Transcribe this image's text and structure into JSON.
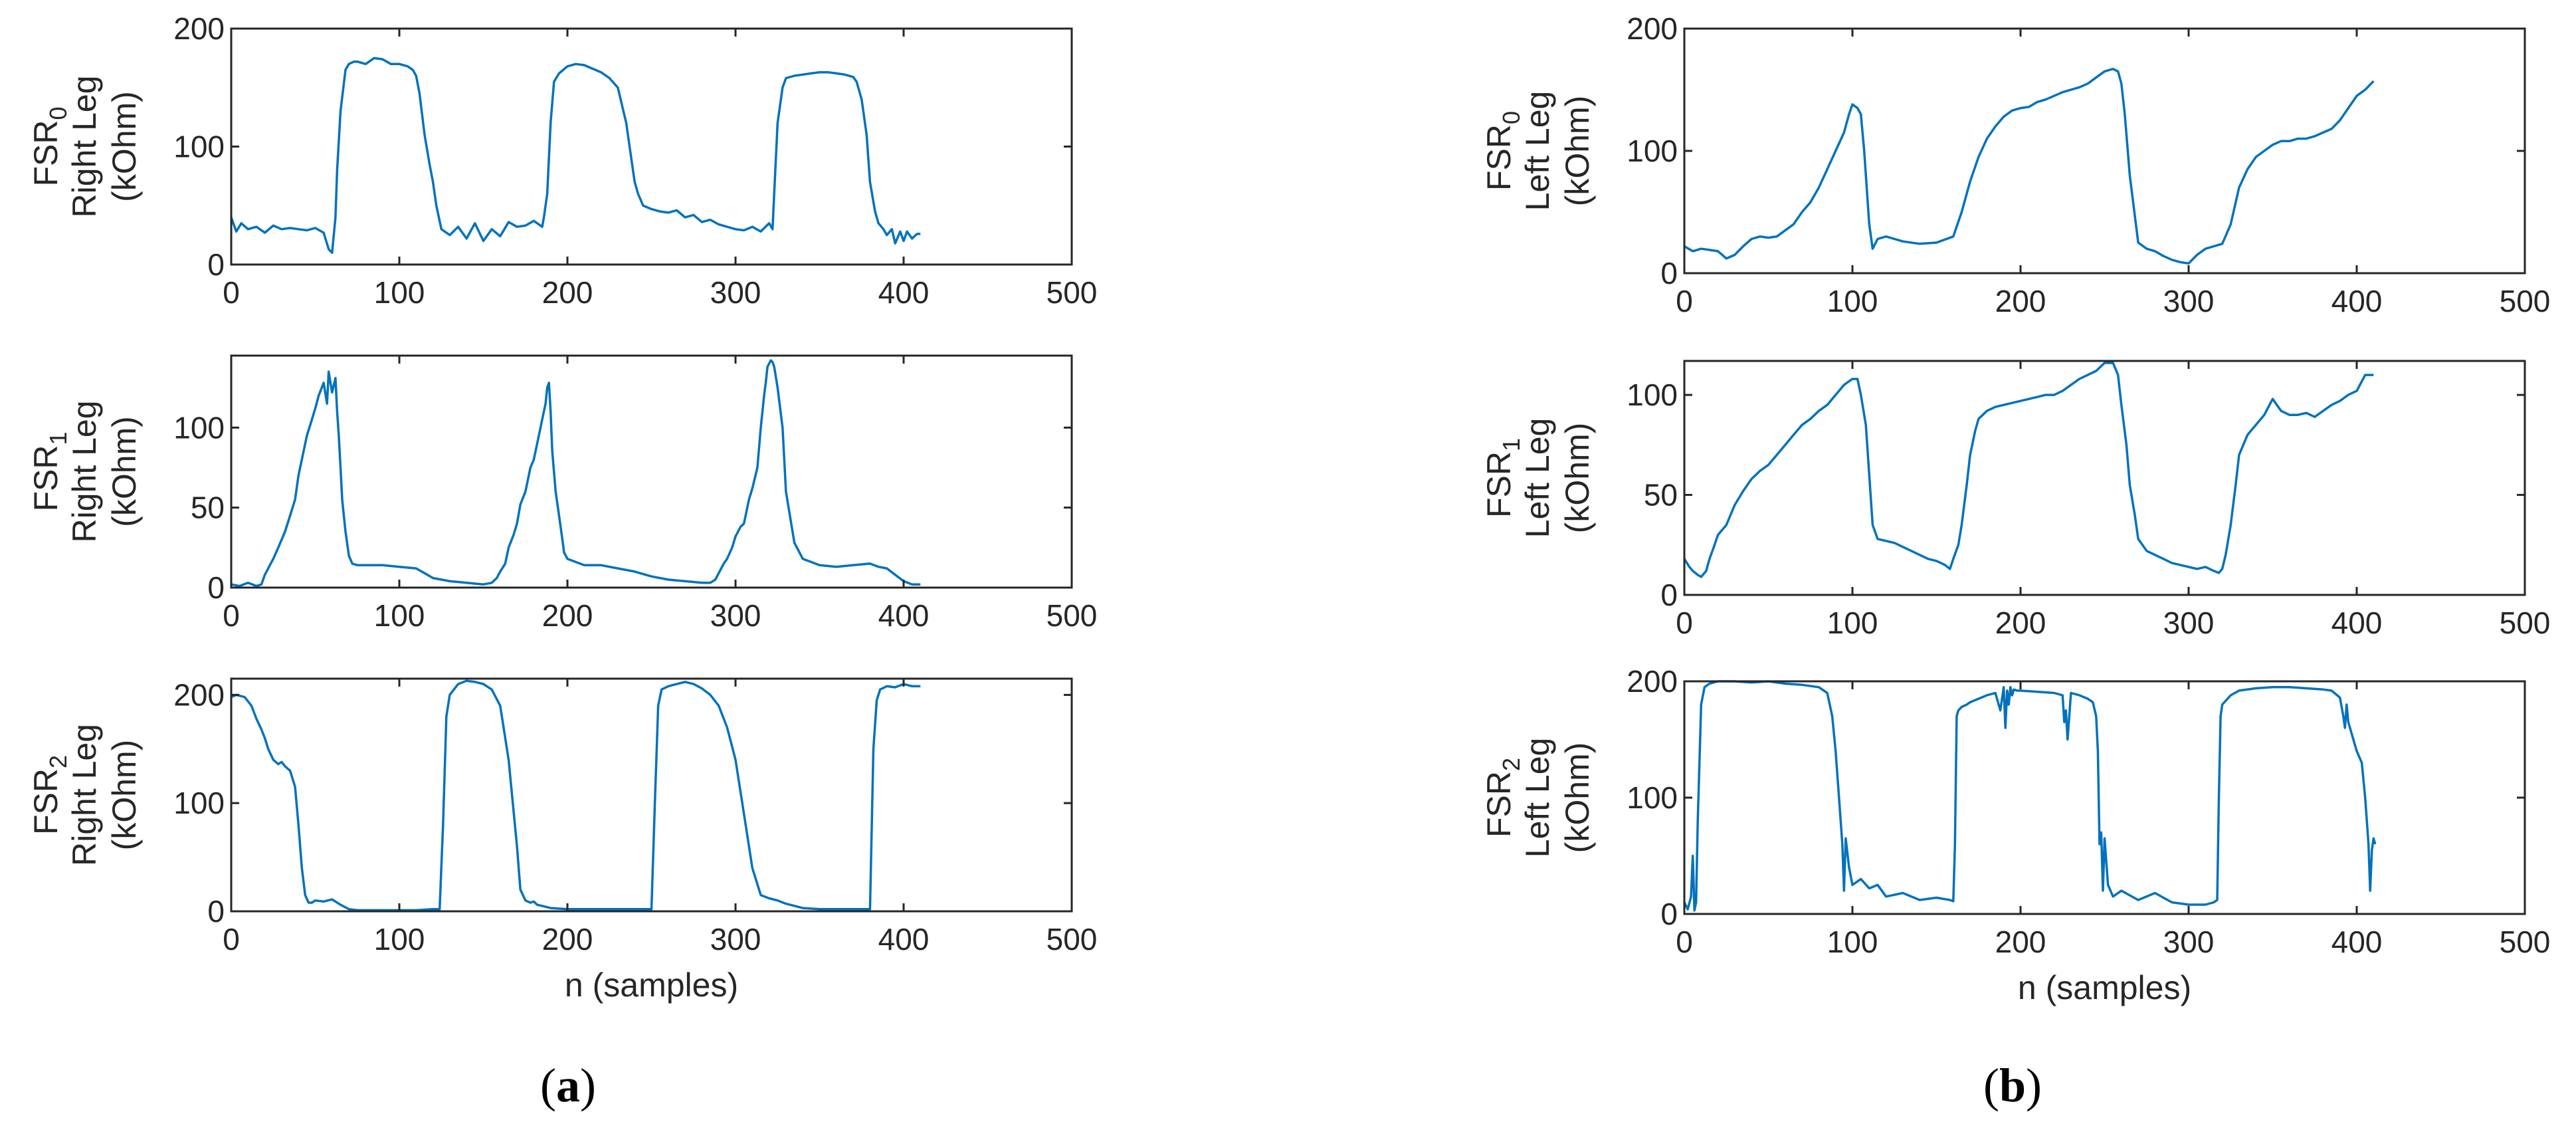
{
  "colors": {
    "line": "#0072BD",
    "axis": "#262626"
  },
  "panel_labels": [
    {
      "open": "(",
      "letter": "a",
      "close": ")"
    },
    {
      "open": "(",
      "letter": "b",
      "close": ")"
    }
  ],
  "chart_data": [
    {
      "type": "line",
      "panel": "a",
      "sensor": "FSR",
      "index": "0",
      "ylabel_line1": "Right Leg",
      "ylabel_line2": "(kOhm)",
      "xlabel": "",
      "xlim": [
        0,
        500
      ],
      "ylim": [
        0,
        200
      ],
      "xticks": [
        "0",
        "100",
        "200",
        "300",
        "400",
        "500"
      ],
      "yticks": [
        "0",
        "100",
        "200"
      ],
      "x": [
        0,
        3,
        6,
        10,
        15,
        20,
        25,
        30,
        35,
        40,
        45,
        50,
        55,
        58,
        60,
        62,
        63,
        65,
        68,
        70,
        73,
        75,
        80,
        85,
        90,
        95,
        100,
        105,
        108,
        110,
        112,
        115,
        118,
        120,
        122,
        125,
        130,
        135,
        140,
        145,
        150,
        155,
        160,
        165,
        170,
        175,
        180,
        185,
        186,
        188,
        190,
        192,
        195,
        200,
        205,
        210,
        215,
        220,
        225,
        230,
        235,
        238,
        240,
        242,
        245,
        250,
        255,
        260,
        265,
        270,
        275,
        280,
        285,
        290,
        295,
        300,
        305,
        310,
        315,
        320,
        322,
        323,
        325,
        328,
        330,
        335,
        340,
        345,
        350,
        355,
        360,
        365,
        370,
        372,
        375,
        378,
        380,
        383,
        385,
        388,
        390,
        393,
        395,
        398,
        400,
        402,
        405,
        408,
        410
      ],
      "y": [
        40,
        28,
        35,
        30,
        32,
        27,
        33,
        30,
        31,
        30,
        29,
        31,
        27,
        13,
        10,
        40,
        80,
        130,
        165,
        170,
        172,
        172,
        170,
        175,
        174,
        170,
        170,
        168,
        165,
        160,
        145,
        110,
        85,
        70,
        50,
        30,
        25,
        32,
        22,
        35,
        20,
        30,
        24,
        36,
        32,
        33,
        37,
        32,
        40,
        60,
        120,
        155,
        162,
        168,
        170,
        169,
        166,
        163,
        158,
        150,
        120,
        90,
        70,
        60,
        50,
        47,
        45,
        44,
        46,
        40,
        42,
        36,
        38,
        34,
        32,
        30,
        29,
        32,
        28,
        35,
        30,
        60,
        120,
        150,
        158,
        160,
        161,
        162,
        163,
        163,
        162,
        161,
        159,
        155,
        140,
        110,
        70,
        45,
        35,
        30,
        25,
        30,
        18,
        28,
        20,
        28,
        22,
        26,
        26
      ]
    },
    {
      "type": "line",
      "panel": "a",
      "sensor": "FSR",
      "index": "1",
      "ylabel_line1": "Right Leg",
      "ylabel_line2": "(kOhm)",
      "xlabel": "",
      "xlim": [
        0,
        500
      ],
      "ylim": [
        0,
        145
      ],
      "xticks": [
        "0",
        "100",
        "200",
        "300",
        "400",
        "500"
      ],
      "yticks": [
        "0",
        "50",
        "100"
      ],
      "x": [
        0,
        5,
        10,
        15,
        18,
        20,
        22,
        25,
        28,
        30,
        32,
        35,
        38,
        40,
        42,
        45,
        48,
        50,
        52,
        55,
        57,
        58,
        60,
        62,
        63,
        64,
        65,
        66,
        68,
        70,
        72,
        75,
        80,
        90,
        100,
        110,
        115,
        120,
        130,
        140,
        150,
        155,
        158,
        160,
        163,
        165,
        168,
        170,
        172,
        175,
        178,
        180,
        183,
        185,
        187,
        188,
        189,
        190,
        191,
        193,
        195,
        197,
        198,
        200,
        205,
        210,
        220,
        230,
        240,
        250,
        260,
        270,
        280,
        285,
        288,
        290,
        293,
        295,
        298,
        300,
        303,
        305,
        308,
        310,
        313,
        315,
        317,
        318,
        319,
        320,
        321,
        322,
        323,
        325,
        328,
        330,
        335,
        340,
        350,
        360,
        370,
        380,
        385,
        390,
        395,
        400,
        405,
        410
      ],
      "y": [
        2,
        1,
        3,
        1,
        2,
        8,
        12,
        18,
        25,
        30,
        35,
        45,
        55,
        70,
        80,
        95,
        105,
        112,
        120,
        128,
        115,
        135,
        122,
        131,
        110,
        95,
        75,
        55,
        35,
        20,
        15,
        14,
        14,
        14,
        13,
        12,
        9,
        6,
        4,
        3,
        2,
        3,
        6,
        10,
        15,
        25,
        33,
        40,
        52,
        60,
        75,
        80,
        95,
        105,
        115,
        125,
        128,
        110,
        85,
        60,
        45,
        30,
        22,
        18,
        16,
        14,
        14,
        12,
        10,
        7,
        5,
        4,
        3,
        3,
        5,
        9,
        15,
        18,
        25,
        32,
        38,
        40,
        55,
        62,
        75,
        100,
        120,
        128,
        138,
        140,
        142,
        141,
        138,
        125,
        100,
        60,
        28,
        18,
        14,
        13,
        14,
        15,
        13,
        12,
        8,
        4,
        2,
        2
      ]
    },
    {
      "type": "line",
      "panel": "a",
      "sensor": "FSR",
      "index": "2",
      "ylabel_line1": "Right Leg",
      "ylabel_line2": "(kOhm)",
      "xlabel": "n (samples)",
      "xlim": [
        0,
        500
      ],
      "ylim": [
        0,
        215
      ],
      "xticks": [
        "0",
        "100",
        "200",
        "300",
        "400",
        "500"
      ],
      "yticks": [
        "0",
        "100",
        "200"
      ],
      "x": [
        0,
        3,
        8,
        12,
        15,
        18,
        20,
        22,
        25,
        28,
        30,
        32,
        35,
        38,
        40,
        42,
        44,
        46,
        48,
        50,
        55,
        60,
        65,
        70,
        75,
        80,
        90,
        100,
        110,
        120,
        124,
        126,
        128,
        130,
        135,
        140,
        145,
        150,
        155,
        160,
        165,
        170,
        172,
        175,
        178,
        180,
        182,
        185,
        190,
        200,
        210,
        220,
        230,
        240,
        250,
        252,
        254,
        256,
        260,
        265,
        270,
        275,
        280,
        285,
        290,
        295,
        300,
        305,
        310,
        315,
        320,
        325,
        330,
        340,
        350,
        360,
        370,
        380,
        382,
        384,
        386,
        390,
        395,
        400,
        405,
        410
      ],
      "y": [
        198,
        200,
        198,
        190,
        178,
        168,
        160,
        150,
        140,
        136,
        138,
        134,
        130,
        115,
        80,
        40,
        15,
        8,
        8,
        10,
        9,
        11,
        6,
        2,
        1,
        1,
        1,
        1,
        1,
        2,
        2,
        80,
        180,
        200,
        210,
        213,
        212,
        210,
        205,
        190,
        140,
        60,
        20,
        10,
        8,
        9,
        6,
        5,
        3,
        2,
        2,
        2,
        2,
        2,
        2,
        100,
        190,
        205,
        208,
        210,
        212,
        210,
        206,
        200,
        190,
        170,
        140,
        90,
        40,
        15,
        12,
        10,
        7,
        3,
        2,
        2,
        2,
        2,
        150,
        195,
        205,
        208,
        207,
        210,
        208,
        208
      ]
    },
    {
      "type": "line",
      "panel": "b",
      "sensor": "FSR",
      "index": "0",
      "ylabel_line1": "Left Leg",
      "ylabel_line2": "(kOhm)",
      "xlabel": "",
      "xlim": [
        0,
        500
      ],
      "ylim": [
        0,
        200
      ],
      "xticks": [
        "0",
        "100",
        "200",
        "300",
        "400",
        "500"
      ],
      "yticks": [
        "0",
        "100",
        "200"
      ],
      "x": [
        0,
        5,
        10,
        15,
        20,
        25,
        30,
        35,
        40,
        45,
        50,
        55,
        60,
        65,
        70,
        75,
        80,
        85,
        90,
        95,
        98,
        100,
        103,
        105,
        107,
        110,
        112,
        115,
        120,
        125,
        130,
        140,
        150,
        160,
        165,
        170,
        175,
        180,
        185,
        190,
        195,
        200,
        205,
        210,
        215,
        220,
        225,
        230,
        235,
        240,
        245,
        250,
        255,
        258,
        260,
        262,
        265,
        270,
        275,
        280,
        285,
        290,
        295,
        300,
        305,
        310,
        315,
        320,
        325,
        330,
        335,
        340,
        345,
        350,
        355,
        360,
        365,
        370,
        375,
        380,
        385,
        390,
        395,
        400,
        405,
        410
      ],
      "y": [
        22,
        18,
        20,
        19,
        18,
        12,
        15,
        22,
        28,
        30,
        29,
        30,
        35,
        40,
        50,
        58,
        70,
        85,
        100,
        115,
        130,
        138,
        135,
        130,
        100,
        40,
        20,
        28,
        30,
        28,
        26,
        24,
        25,
        30,
        50,
        75,
        95,
        110,
        120,
        128,
        133,
        135,
        136,
        140,
        142,
        145,
        148,
        150,
        152,
        155,
        160,
        165,
        167,
        165,
        155,
        130,
        80,
        25,
        20,
        18,
        14,
        11,
        9,
        8,
        15,
        20,
        22,
        24,
        40,
        70,
        85,
        95,
        100,
        105,
        108,
        108,
        110,
        110,
        112,
        115,
        118,
        125,
        135,
        145,
        150,
        157
      ]
    },
    {
      "type": "line",
      "panel": "b",
      "sensor": "FSR",
      "index": "1",
      "ylabel_line1": "Left Leg",
      "ylabel_line2": "(kOhm)",
      "xlabel": "",
      "xlim": [
        0,
        500
      ],
      "ylim": [
        0,
        117
      ],
      "xticks": [
        "0",
        "100",
        "200",
        "300",
        "400",
        "500"
      ],
      "yticks": [
        "0",
        "50",
        "100"
      ],
      "x": [
        0,
        3,
        5,
        8,
        10,
        13,
        15,
        18,
        20,
        25,
        30,
        35,
        40,
        45,
        50,
        55,
        60,
        65,
        70,
        75,
        80,
        85,
        90,
        95,
        100,
        103,
        105,
        108,
        110,
        112,
        115,
        120,
        125,
        130,
        135,
        140,
        145,
        150,
        155,
        158,
        160,
        163,
        165,
        168,
        170,
        173,
        175,
        180,
        185,
        190,
        195,
        200,
        205,
        210,
        215,
        220,
        225,
        230,
        235,
        240,
        245,
        250,
        255,
        258,
        260,
        263,
        265,
        268,
        270,
        275,
        280,
        285,
        290,
        295,
        300,
        305,
        310,
        315,
        318,
        320,
        322,
        325,
        328,
        330,
        335,
        340,
        345,
        350,
        355,
        360,
        365,
        370,
        375,
        380,
        385,
        390,
        395,
        400,
        405,
        410
      ],
      "y": [
        18,
        14,
        12,
        10,
        9,
        12,
        18,
        25,
        30,
        35,
        45,
        52,
        58,
        62,
        65,
        70,
        75,
        80,
        85,
        88,
        92,
        95,
        100,
        105,
        108,
        108,
        100,
        85,
        60,
        35,
        28,
        27,
        26,
        24,
        22,
        20,
        18,
        17,
        15,
        13,
        18,
        25,
        35,
        55,
        70,
        82,
        88,
        92,
        94,
        95,
        96,
        97,
        98,
        99,
        100,
        100,
        102,
        105,
        108,
        110,
        112,
        116,
        116,
        110,
        95,
        75,
        55,
        40,
        28,
        22,
        20,
        18,
        16,
        15,
        14,
        13,
        14,
        12,
        11,
        13,
        20,
        35,
        55,
        70,
        80,
        85,
        90,
        98,
        92,
        90,
        90,
        91,
        89,
        92,
        95,
        97,
        100,
        102,
        110,
        110
      ]
    },
    {
      "type": "line",
      "panel": "b",
      "sensor": "FSR",
      "index": "2",
      "ylabel_line1": "Left Leg",
      "ylabel_line2": "(kOhm)",
      "xlabel": "n (samples)",
      "xlim": [
        0,
        500
      ],
      "ylim": [
        0,
        200
      ],
      "xticks": [
        "0",
        "100",
        "200",
        "300",
        "400",
        "500"
      ],
      "yticks": [
        "0",
        "100",
        "200"
      ],
      "x": [
        0,
        2,
        4,
        5,
        6,
        7,
        8,
        10,
        12,
        15,
        20,
        30,
        40,
        50,
        60,
        70,
        80,
        85,
        88,
        90,
        92,
        93,
        94,
        95,
        96,
        98,
        100,
        105,
        110,
        115,
        120,
        130,
        140,
        150,
        158,
        160,
        161,
        162,
        163,
        165,
        168,
        170,
        175,
        180,
        185,
        188,
        190,
        191,
        192,
        193,
        194,
        195,
        196,
        198,
        200,
        210,
        220,
        225,
        226,
        227,
        228,
        230,
        235,
        240,
        243,
        245,
        246,
        247,
        248,
        249,
        250,
        252,
        255,
        260,
        270,
        280,
        290,
        300,
        310,
        315,
        317,
        318,
        319,
        320,
        325,
        330,
        340,
        350,
        360,
        370,
        380,
        385,
        390,
        392,
        393,
        394,
        395,
        398,
        400,
        403,
        405,
        407,
        408,
        409,
        410,
        411
      ],
      "y": [
        10,
        4,
        15,
        50,
        3,
        10,
        80,
        180,
        195,
        198,
        200,
        200,
        199,
        200,
        198,
        197,
        195,
        190,
        170,
        140,
        100,
        80,
        60,
        20,
        65,
        40,
        25,
        30,
        22,
        25,
        15,
        18,
        12,
        14,
        12,
        11,
        60,
        170,
        175,
        178,
        180,
        182,
        185,
        188,
        190,
        175,
        195,
        160,
        192,
        180,
        195,
        188,
        193,
        192,
        192,
        191,
        190,
        188,
        165,
        175,
        150,
        190,
        188,
        185,
        182,
        170,
        140,
        60,
        70,
        20,
        65,
        25,
        15,
        20,
        12,
        18,
        10,
        8,
        8,
        10,
        12,
        100,
        170,
        180,
        188,
        192,
        194,
        195,
        195,
        194,
        193,
        192,
        186,
        170,
        160,
        180,
        165,
        150,
        140,
        130,
        100,
        60,
        20,
        55,
        65,
        60
      ]
    }
  ]
}
